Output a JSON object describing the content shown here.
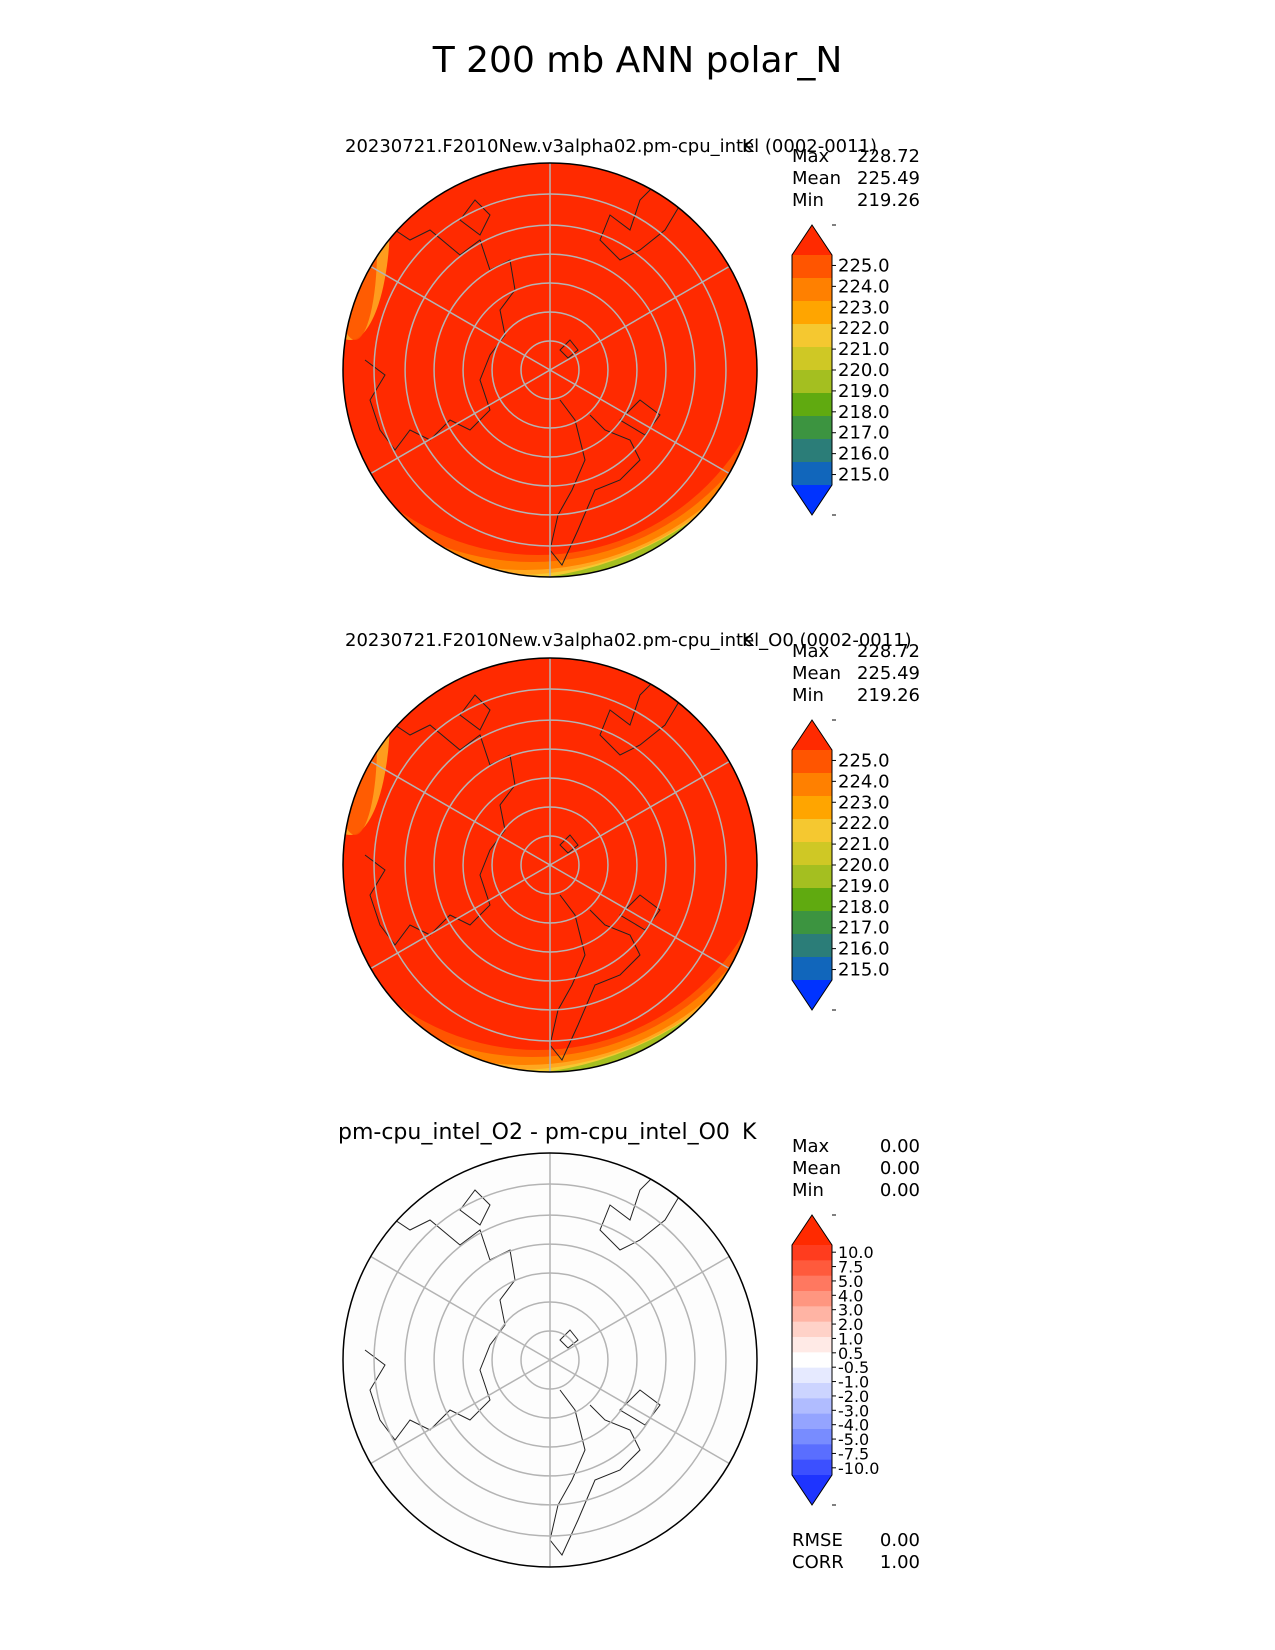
{
  "title": "T 200 mb ANN polar_N",
  "panels": [
    {
      "title_left": "20230721.F2010New.v3alpha02.pm-cpu_intel (0002-0011)",
      "title_right": "K",
      "stats": [
        {
          "label": "Max",
          "value": "228.72"
        },
        {
          "label": "Mean",
          "value": "225.49"
        },
        {
          "label": "Min",
          "value": "219.26"
        }
      ],
      "colorbar": {
        "ticks": [
          "225.0",
          "224.0",
          "223.0",
          "222.0",
          "221.0",
          "220.0",
          "219.0",
          "218.0",
          "217.0",
          "216.0",
          "215.0"
        ],
        "colors": [
          "#ff2a00",
          "#ff5500",
          "#ff8000",
          "#ffa500",
          "#f5c830",
          "#cfc825",
          "#a4bf20",
          "#60aa10",
          "#3c9440",
          "#2b7d78",
          "#1166bb",
          "#0033ff"
        ]
      },
      "field_colors": [
        "#ff2a00",
        "#ff5500",
        "#ff8000",
        "#ffa820",
        "#f5c830",
        "#cfc825",
        "#a4bf20"
      ]
    },
    {
      "title_left": "20230721.F2010New.v3alpha02.pm-cpu_intel_O0 (0002-0011)",
      "title_right": "K",
      "stats": [
        {
          "label": "Max",
          "value": "228.72"
        },
        {
          "label": "Mean",
          "value": "225.49"
        },
        {
          "label": "Min",
          "value": "219.26"
        }
      ],
      "colorbar": {
        "ticks": [
          "225.0",
          "224.0",
          "223.0",
          "222.0",
          "221.0",
          "220.0",
          "219.0",
          "218.0",
          "217.0",
          "216.0",
          "215.0"
        ],
        "colors": [
          "#ff2a00",
          "#ff5500",
          "#ff8000",
          "#ffa500",
          "#f5c830",
          "#cfc825",
          "#a4bf20",
          "#60aa10",
          "#3c9440",
          "#2b7d78",
          "#1166bb",
          "#0033ff"
        ]
      },
      "field_colors": [
        "#ff2a00",
        "#ff5500",
        "#ff8000",
        "#ffa820",
        "#f5c830",
        "#cfc825",
        "#a4bf20"
      ]
    },
    {
      "title_left": "pm-cpu_intel_O2 - pm-cpu_intel_O0",
      "title_right": "K",
      "stats": [
        {
          "label": "Max",
          "value": "0.00"
        },
        {
          "label": "Mean",
          "value": "0.00"
        },
        {
          "label": "Min",
          "value": "0.00"
        }
      ],
      "colorbar": {
        "ticks": [
          "10.0",
          "7.5",
          "5.0",
          "4.0",
          "3.0",
          "2.0",
          "1.0",
          "0.5",
          "-0.5",
          "-1.0",
          "-2.0",
          "-3.0",
          "-4.0",
          "-5.0",
          "-7.5",
          "-10.0"
        ],
        "colors": [
          "#ff2a00",
          "#ff3c1e",
          "#ff5a3c",
          "#ff7860",
          "#ff9680",
          "#ffb4a4",
          "#ffd2c8",
          "#ffeae6",
          "#ffffff",
          "#e6eaff",
          "#ccd4ff",
          "#b0bcff",
          "#94a4ff",
          "#788cff",
          "#5a6eff",
          "#3c50ff",
          "#1e34ff"
        ]
      },
      "extra_stats": [
        {
          "label": "RMSE",
          "value": "0.00"
        },
        {
          "label": "CORR",
          "value": "1.00"
        }
      ]
    }
  ],
  "chart_data": {
    "type": "heatmap",
    "projection": "north polar stereographic",
    "title": "T 200 mb ANN polar_N",
    "panels": [
      {
        "name": "20230721.F2010New.v3alpha02.pm-cpu_intel (0002-0011)",
        "units": "K",
        "max": 228.72,
        "mean": 225.49,
        "min": 219.26,
        "levels": [
          215,
          216,
          217,
          218,
          219,
          220,
          221,
          222,
          223,
          224,
          225
        ]
      },
      {
        "name": "20230721.F2010New.v3alpha02.pm-cpu_intel_O0 (0002-0011)",
        "units": "K",
        "max": 228.72,
        "mean": 225.49,
        "min": 219.26,
        "levels": [
          215,
          216,
          217,
          218,
          219,
          220,
          221,
          222,
          223,
          224,
          225
        ]
      },
      {
        "name": "pm-cpu_intel_O2 - pm-cpu_intel_O0",
        "units": "K",
        "max": 0.0,
        "mean": 0.0,
        "min": 0.0,
        "rmse": 0.0,
        "corr": 1.0,
        "levels": [
          -10,
          -7.5,
          -5,
          -4,
          -3,
          -2,
          -1,
          -0.5,
          0.5,
          1,
          2,
          3,
          4,
          5,
          7.5,
          10
        ]
      }
    ]
  }
}
